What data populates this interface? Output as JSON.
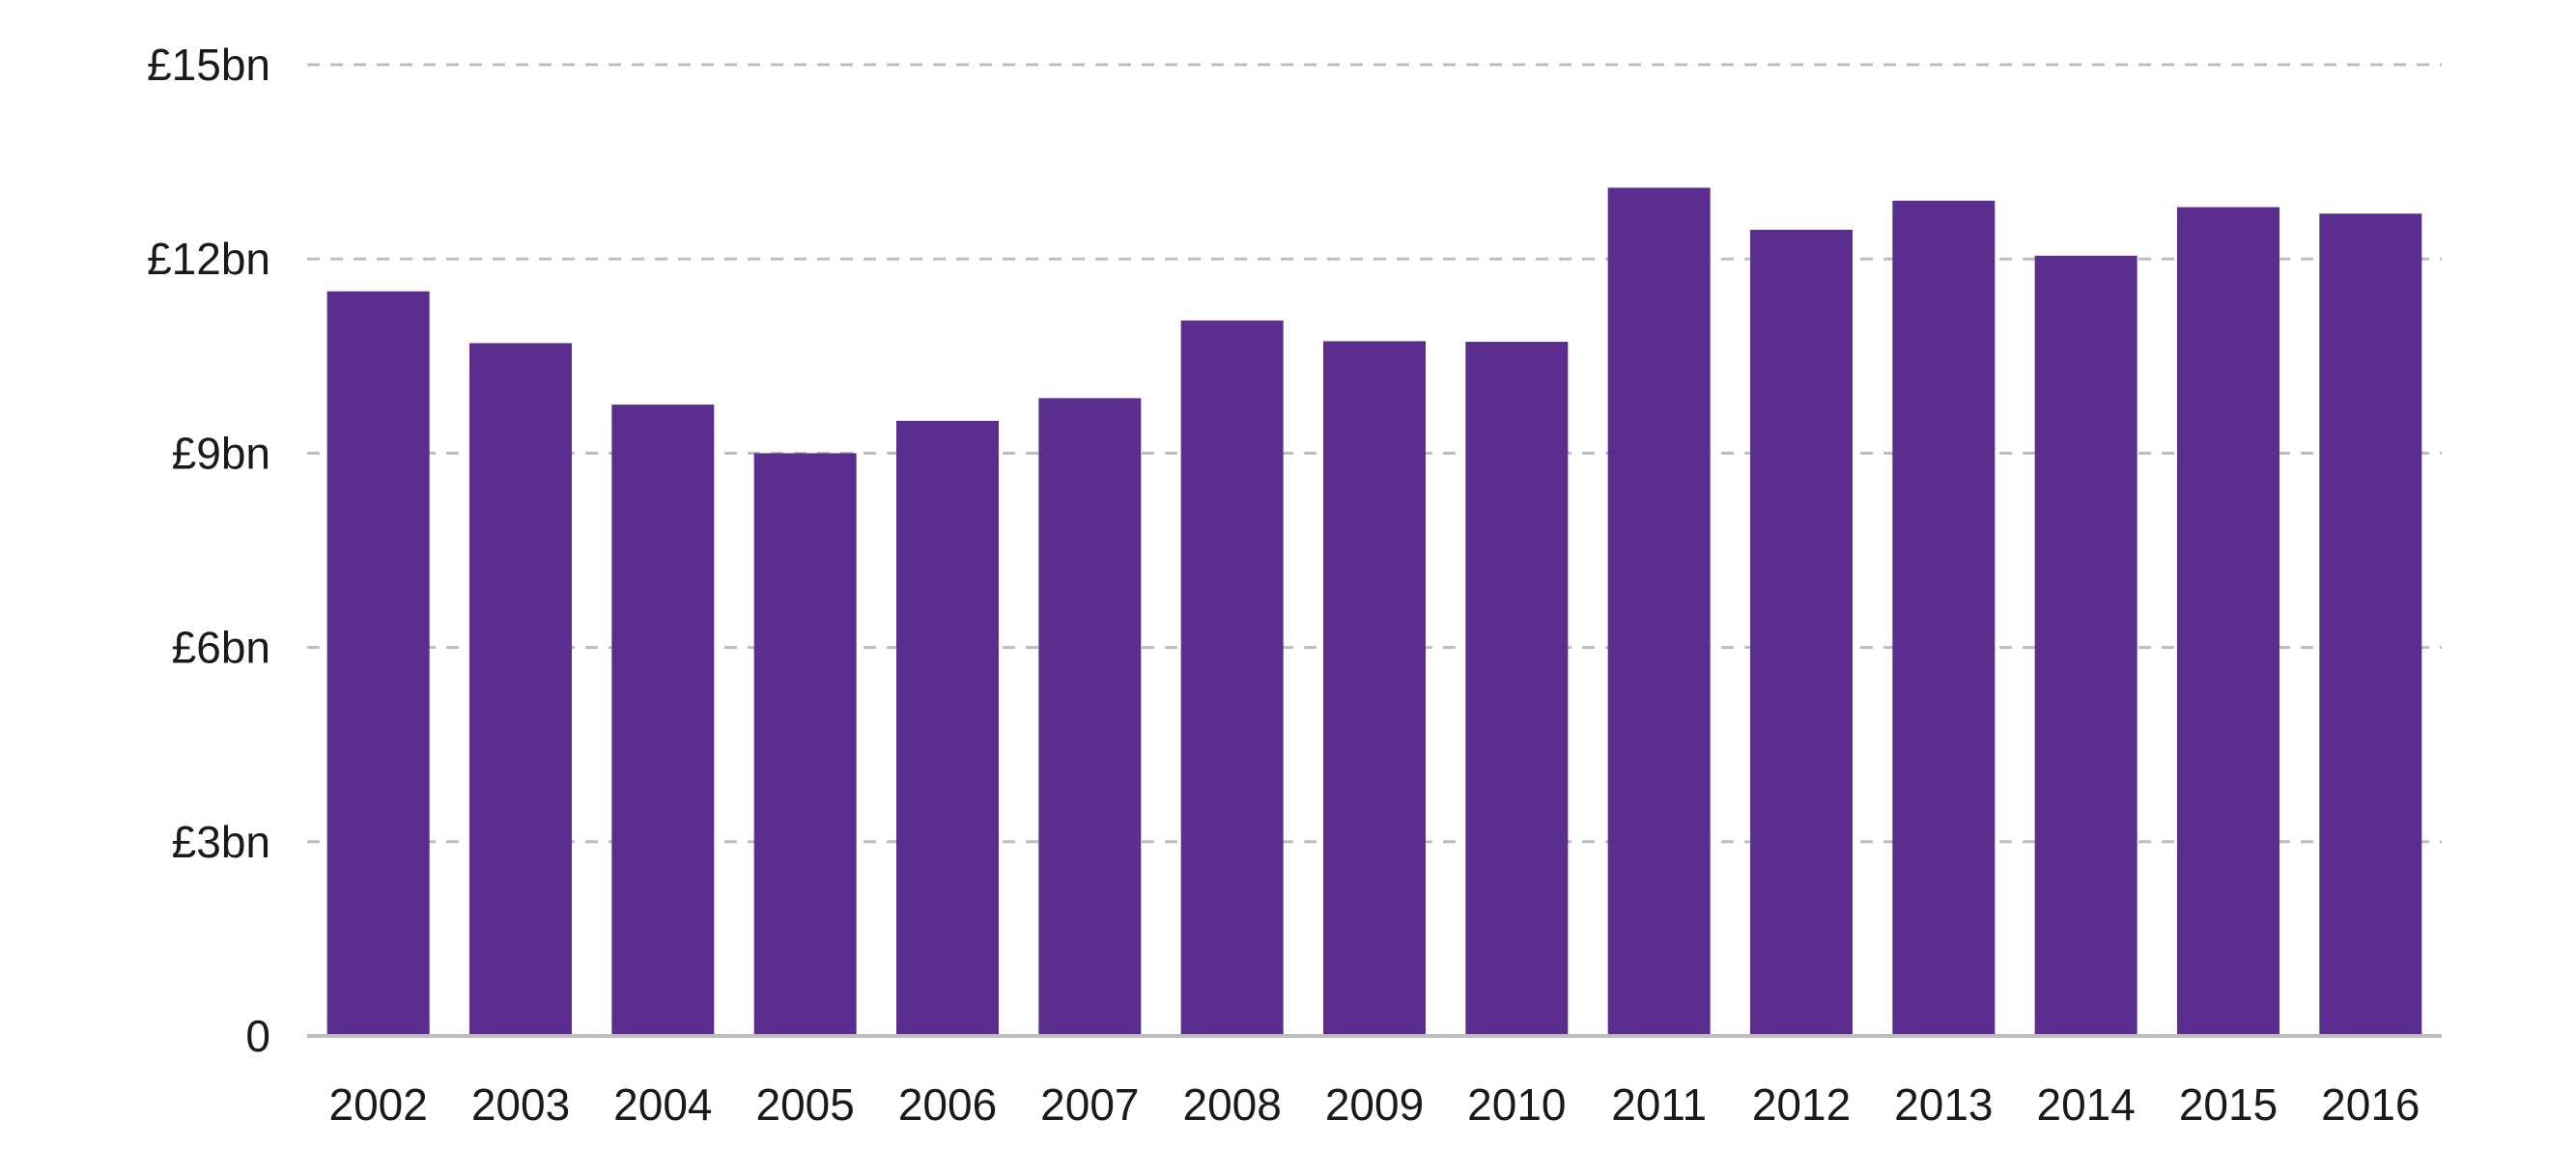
{
  "chart_data": {
    "type": "bar",
    "title": "",
    "xlabel": "",
    "ylabel": "",
    "categories": [
      "2002",
      "2003",
      "2004",
      "2005",
      "2006",
      "2007",
      "2008",
      "2009",
      "2010",
      "2011",
      "2012",
      "2013",
      "2014",
      "2015",
      "2016"
    ],
    "values": [
      11.5,
      10.7,
      9.75,
      9.0,
      9.5,
      9.85,
      11.05,
      10.73,
      10.72,
      13.1,
      12.45,
      12.9,
      12.05,
      12.8,
      12.7
    ],
    "unit": "£bn",
    "ylim": [
      0,
      15
    ],
    "yticks": [
      0,
      3,
      6,
      9,
      12,
      15
    ],
    "ytick_labels": [
      "0",
      "£3bn",
      "£6bn",
      "£9bn",
      "£12bn",
      "£15bn"
    ],
    "grid": "horizontal dashed",
    "legend": "none",
    "bar_color": "#5b2d8e",
    "grid_color": "#bdbdbd"
  }
}
